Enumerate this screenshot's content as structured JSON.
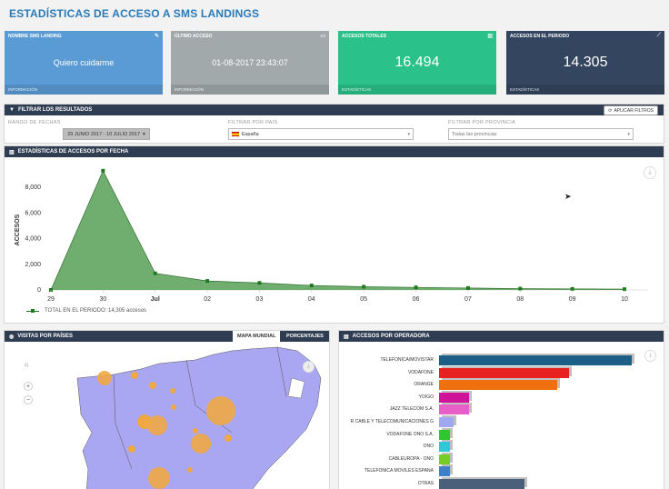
{
  "page_title": "ESTADÍSTICAS DE ACCESO A SMS LANDINGS",
  "cards": [
    {
      "header": "NOMBRE SMS LANDING",
      "value": "Quiero cuidarme",
      "footer": "INFORMACIÓN",
      "color": "#5b9bd5",
      "icon": "pencil-icon"
    },
    {
      "header": "ÚLTIMO ACCESO",
      "value": "01-08-2017 23:43:07",
      "footer": "INFORMACIÓN",
      "color": "#a1a9ab",
      "icon": "card-icon"
    },
    {
      "header": "ACCESOS TOTALES",
      "value": "16.494",
      "footer": "ESTADÍSTICAS",
      "color": "#2ac28a",
      "icon": "bar-chart-icon"
    },
    {
      "header": "ACCESOS EN EL PERIODO",
      "value": "14.305",
      "footer": "ESTADÍSTICAS",
      "color": "#34465f",
      "icon": "line-chart-icon"
    }
  ],
  "filters": {
    "title": "FILTRAR LOS RESULTADOS",
    "apply_label": "APLICAR FILTROS",
    "range_label": "RANGO DE FECHAS",
    "range_value": "29 JUNIO 2017 - 10 JULIO 2017",
    "country_label": "FILTRAR POR PAÍS",
    "country_value": "España",
    "province_label": "FILTRAR POR PROVINCIA",
    "province_value": "Todas las provincias"
  },
  "date_chart": {
    "title": "ESTADÍSTICAS DE ACCESOS POR FECHA",
    "legend": "TOTAL EN EL PERIODO: 14,305 accesos"
  },
  "chart_data": [
    {
      "type": "area",
      "title": "ESTADÍSTICAS DE ACCESOS POR FECHA",
      "ylabel": "ACCESOS",
      "x": [
        "29",
        "30",
        "Jul",
        "02",
        "03",
        "04",
        "05",
        "06",
        "07",
        "08",
        "09",
        "10"
      ],
      "y_ticks": [
        "0",
        "2,000",
        "4,000",
        "6,000",
        "8,000"
      ],
      "ylim": [
        0,
        9500
      ],
      "series": [
        {
          "name": "TOTAL EN EL PERIODO: 14,305 accesos",
          "values": [
            0,
            9300,
            1300,
            700,
            550,
            350,
            250,
            200,
            150,
            100,
            80,
            60
          ]
        }
      ],
      "color": "#4c9a4c"
    },
    {
      "type": "bar",
      "title": "ACCESOS POR OPERADORA",
      "orientation": "horizontal",
      "categories": [
        "TELEFONICA/MOVISTAR",
        "VODAFONE",
        "ORANGE",
        "YOIGO",
        "JAZZ TELECOM S.A.",
        "R CABLE Y TELECOMUNICACIONES G",
        "VODAFONE ONO S.A.",
        "ONO",
        "CABLEUROPA - ONO",
        "TELEFONICA MOVILES ESPANA",
        "OTRAS"
      ],
      "values": [
        5200,
        3500,
        3200,
        800,
        800,
        400,
        300,
        300,
        300,
        300,
        2300
      ],
      "colors": [
        "#1c5f86",
        "#e82020",
        "#f07010",
        "#d0149a",
        "#e85fc8",
        "#9fa8ee",
        "#2ec82e",
        "#30c8d8",
        "#78cc28",
        "#4080c8",
        "#4a5f7a"
      ]
    }
  ],
  "map": {
    "title": "VISITAS POR PAÍSES",
    "tab_map": "MAPA MUNDIAL",
    "tab_pct": "PORCENTAJES"
  },
  "operators": {
    "title": "ACCESOS POR OPERADORA"
  }
}
